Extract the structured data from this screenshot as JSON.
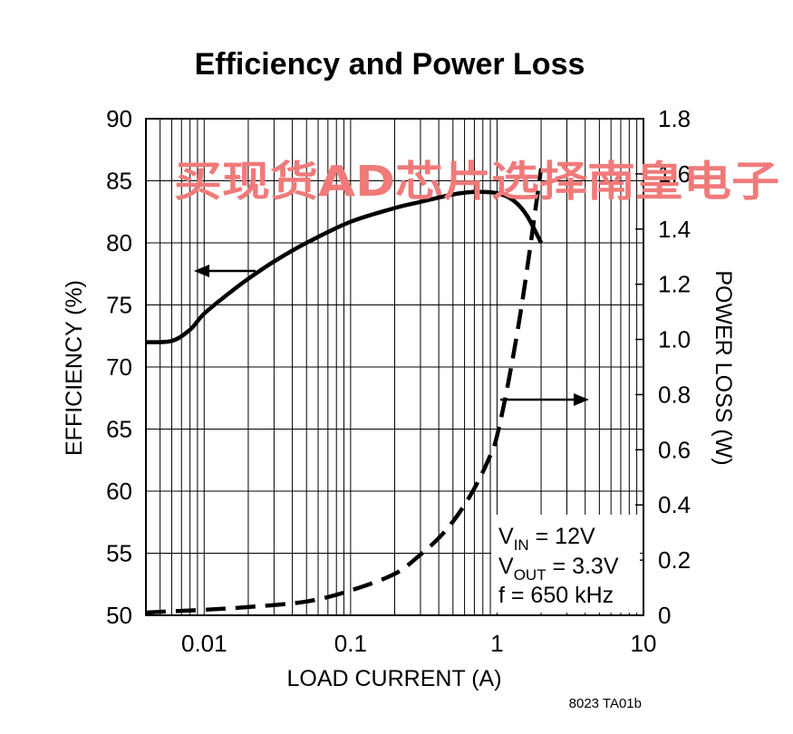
{
  "chart_data": {
    "type": "line",
    "title": "Efficiency and Power Loss",
    "xlabel": "LOAD CURRENT (A)",
    "ylabel_left": "EFFICIENCY (%)",
    "ylabel_right": "POWER LOSS (W)",
    "x_scale": "log",
    "xlim": [
      0.004,
      10
    ],
    "ylim_left": [
      50,
      90
    ],
    "ylim_right": [
      0,
      1.8
    ],
    "grid": true,
    "x_ticks": [
      "0.01",
      "0.1",
      "1",
      "10"
    ],
    "x_tick_values": [
      0.01,
      0.1,
      1,
      10
    ],
    "y_left_ticks": [
      "90",
      "85",
      "80",
      "75",
      "70",
      "65",
      "60",
      "55",
      "50"
    ],
    "y_left_tick_values": [
      90,
      85,
      80,
      75,
      70,
      65,
      60,
      55,
      50
    ],
    "y_right_ticks": [
      "1.8",
      "1.6",
      "1.4",
      "1.2",
      "1.0",
      "0.8",
      "0.6",
      "0.4",
      "0.2",
      "0"
    ],
    "y_right_tick_values": [
      1.8,
      1.6,
      1.4,
      1.2,
      1.0,
      0.8,
      0.6,
      0.4,
      0.2,
      0
    ],
    "series": [
      {
        "axis": "left",
        "style": "solid",
        "x": [
          0.004,
          0.006,
          0.008,
          0.01,
          0.015,
          0.02,
          0.03,
          0.05,
          0.1,
          0.2,
          0.3,
          0.5,
          0.7,
          1.0,
          1.3,
          1.6,
          2.0
        ],
        "y": [
          72.0,
          72.1,
          73.0,
          74.3,
          76.0,
          77.1,
          78.5,
          80.0,
          81.7,
          82.8,
          83.3,
          83.9,
          84.1,
          84.0,
          83.4,
          82.2,
          80.0
        ]
      },
      {
        "axis": "right",
        "style": "dashed",
        "x": [
          0.004,
          0.01,
          0.02,
          0.05,
          0.1,
          0.2,
          0.3,
          0.4,
          0.5,
          0.6,
          0.7,
          0.8,
          0.9,
          1.0,
          1.2,
          1.5,
          2.0
        ],
        "y": [
          0.01,
          0.02,
          0.03,
          0.05,
          0.09,
          0.15,
          0.22,
          0.28,
          0.34,
          0.4,
          0.46,
          0.52,
          0.58,
          0.65,
          0.85,
          1.15,
          1.62
        ]
      }
    ],
    "conditions": {
      "vin": {
        "main": "V",
        "sub": "IN",
        "rest": " = 12V"
      },
      "vout": {
        "main": "V",
        "sub": "OUT",
        "rest": " = 3.3V"
      },
      "freq": "f = 650 kHz"
    },
    "figure_id": "8023 TA01b",
    "watermark": "买现货AD芯片选择南皇电子"
  }
}
